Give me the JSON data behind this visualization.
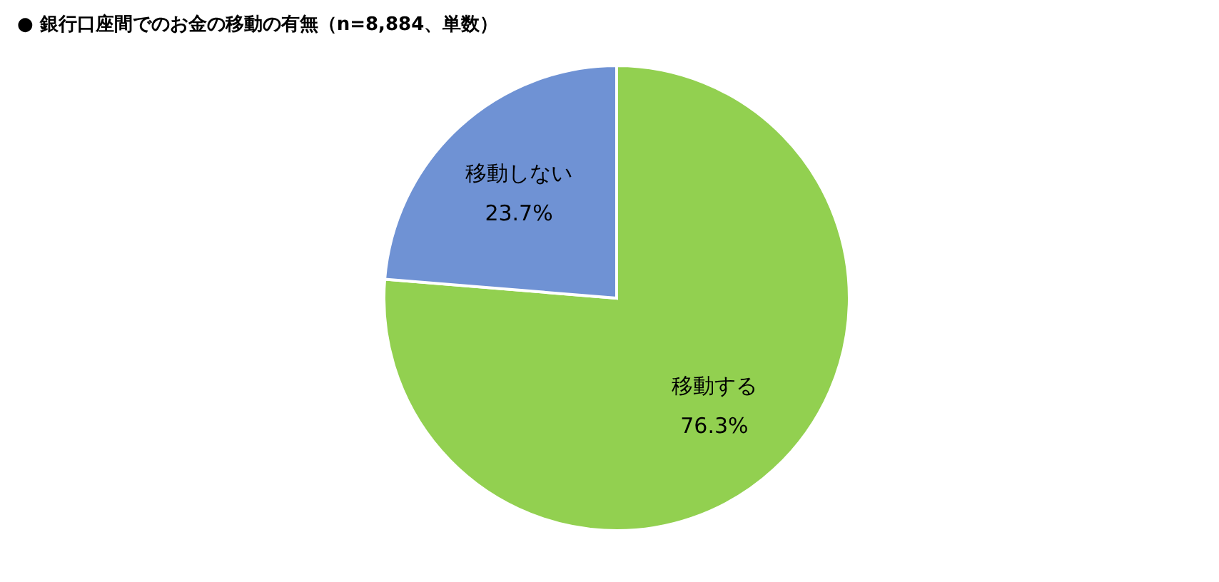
{
  "chart_data": {
    "type": "pie",
    "title": "●  銀行口座間でのお金の移動の有無（n=8,884、単数）",
    "categories": [
      "移動する",
      "移動しない"
    ],
    "values": [
      76.3,
      23.7
    ],
    "value_labels": [
      "76.3%",
      "23.7%"
    ],
    "colors": [
      "#92d050",
      "#6f92d4"
    ]
  }
}
